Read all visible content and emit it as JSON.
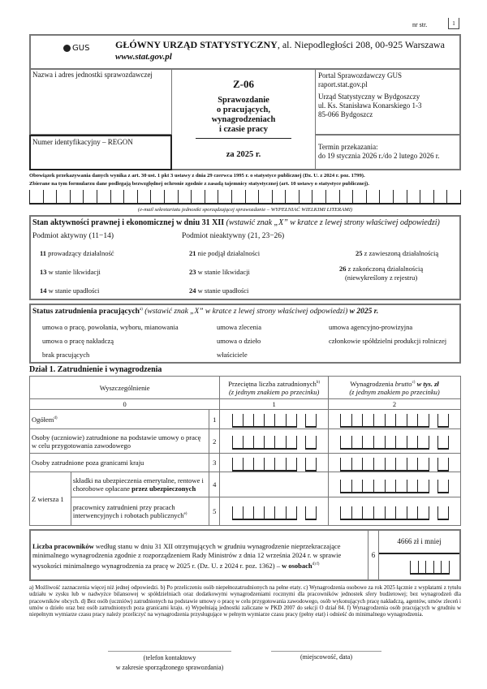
{
  "page": {
    "label": "nr str.",
    "number": "1"
  },
  "header": {
    "logo": "GUS",
    "org": "GŁÓWNY URZĄD STATYSTYCZNY",
    "address": ", al. Niepodległości 208, 00-925 Warszawa",
    "www": "www.stat.gov.pl"
  },
  "left": {
    "name_label": "Nazwa i adres jednostki sprawozdawczej",
    "regon_label": "Numer identyfikacyjny – REGON"
  },
  "center": {
    "code": "Z-06",
    "title_lines": [
      "Sprawozdanie",
      "o pracujących,",
      "wynagrodzeniach",
      "i czasie pracy"
    ],
    "period": "za 2025 r."
  },
  "right": {
    "portal": "Portal Sprawozdawczy GUS",
    "portal_url": "raport.stat.gov.pl",
    "office": [
      "Urząd Statystyczny w Bydgoszczy",
      "ul. Ks. Stanisława Konarskiego 1-3",
      "85-066 Bydgoszcz"
    ],
    "deadline_label": "Termin przekazania:",
    "deadline": "do 19 stycznia 2026 r./do 2 lutego 2026 r."
  },
  "legal": [
    "Obowiązek przekazywania danych wynika z art. 30 ust. 1 pkt 3 ustawy z dnia 29 czerwca 1995 r. o statystyce publicznej (Dz. U. z 2024 r. poz. 1799).",
    "Zbierane na tym formularzu dane podlegają bezwzględnej ochronie zgodnie z zasadą tajemnicy statystycznej (art. 10 ustawy o statystyce publicznej)."
  ],
  "email_caption": "(e-mail sekretariatu jednostki sporządzającej sprawozdanie – WYPEŁNIAĆ WIELKIMI LITERAMI)",
  "activity": {
    "title": "Stan aktywności prawnej i ekonomicznej w dniu 31 XII",
    "hint": " (wstawić znak „X” w kratce z lewej strony właściwej odpowiedzi)",
    "active": "Podmiot aktywny (11−14)",
    "inactive": "Podmiot nieaktywny (21, 23−26)",
    "options": [
      {
        "code": "11",
        "label": "prowadzący działalność"
      },
      {
        "code": "13",
        "label": "w stanie likwidacji"
      },
      {
        "code": "14",
        "label": "w stanie upadłości"
      },
      {
        "code": "21",
        "label": "nie podjął działalności"
      },
      {
        "code": "23",
        "label": "w stanie likwidacji"
      },
      {
        "code": "24",
        "label": "w stanie upadłości"
      },
      {
        "code": "25",
        "label": "z zawieszoną działalnością"
      },
      {
        "code": "26",
        "label": "z zakończoną działalnością",
        "sub": "(niewykreślony z rejestru)"
      }
    ]
  },
  "employment": {
    "title": "Status zatrudnienia pracujących",
    "sup": "a)",
    "hint": " (wstawić znak „X” w kratce z lewej strony właściwej odpowiedzi)",
    "year": " w 2025 r.",
    "options": [
      "umowa o pracę, powołania, wyboru, mianowania",
      "umowa o pracę nakładczą",
      "brak pracujących",
      "umowa zlecenia",
      "umowa o dzieło",
      "właściciele",
      "umowa agencyjno-prowizyjna",
      "członkowie spółdzielni produkcji rolniczej"
    ]
  },
  "section1": {
    "title": "Dział 1. Zatrudnienie i wynagrodzenia",
    "col0": "Wyszczególnienie",
    "col1": "Przeciętna liczba zatrudnionych",
    "col1_sup": "b)",
    "col1_sub": "(z jednym znakiem po przecinku)",
    "col2a": "Wynagrodzenia ",
    "col2b": "brutto",
    "col2_sup": "c)",
    "col2c": " w tys. zł",
    "col2_sub": "(z jednym znakiem po przecinku)",
    "nums": [
      "0",
      "1",
      "2"
    ],
    "rows": [
      {
        "label": "Ogółem",
        "sup": "d)",
        "n": "1"
      },
      {
        "label": "Osoby (uczniowie) zatrudnione na podstawie umowy o pracę w celu przygotowania zawodowego",
        "n": "2"
      },
      {
        "label": "Osoby zatrudnione poza granicami kraju",
        "n": "3"
      },
      {
        "group": "Z wiersza 1",
        "label": "składki na ubezpieczenia emerytalne, rentowe i chorobowe opłacane ",
        "bold": "przez ubezpieczonych",
        "n": "4"
      },
      {
        "label": "pracownicy zatrudnieni przy pracach interwencyjnych i robotach publicznych",
        "sup": "e)",
        "n": "5"
      }
    ]
  },
  "row6": {
    "bold": "Liczba pracowników",
    "text": " według stanu w dniu 31 XII otrzymujących w grudniu wynagrodzenie nieprzekraczające minimalnego wynagrodzenia zgodnie z rozporządzeniem Rady Ministrów z dnia 12 września 2024 r. w sprawie wysokości minimalnego wynagrodzenia za pracę w 2025 r. (Dz. U. z 2024 r. poz. 1362) – ",
    "bold2": "w osobach",
    "sup": "d) f)",
    "n": "6",
    "header": "4666 zł i mniej"
  },
  "footnotes": "a) Możliwość zaznaczenia więcej niż jednej odpowiedzi. b) Po przeliczeniu osób niepełnozatrudnionych na pełne etaty. c) Wynagrodzenia osobowe za rok 2025 łącznie z wypłatami z tytułu udziału w zysku lub w nadwyżce bilansowej w spółdzielniach oraz dodatkowymi wynagrodzeniami rocznymi dla pracowników jednostek sfery budżetowej; bez wynagrodzeń dla pracowników obcych. d) Bez osób (uczniów) zatrudnionych na podstawie umowy o pracę w celu przygotowania zawodowego, osób wykonujących pracę nakładczą, agentów, umów zleceń i umów o dzieło oraz bez osób zatrudnionych poza granicami kraju. e) Wypełniają jednostki zaliczane w PKD 2007 do sekcji O dział 84. f) Wynagrodzenia osób pracujących w grudniu w niepełnym wymiarze czasu pracy należy przeliczyć na wynagrodzenia przysługujące w pełnym wymiarze czasu pracy (pełny etat) i odnieść do minimalnego wynagrodzenia.",
  "signatures": {
    "phone": [
      "(telefon kontaktowy",
      "w zakresie sporządzonego sprawozdania)"
    ],
    "place": "(miejscowość, data)"
  }
}
